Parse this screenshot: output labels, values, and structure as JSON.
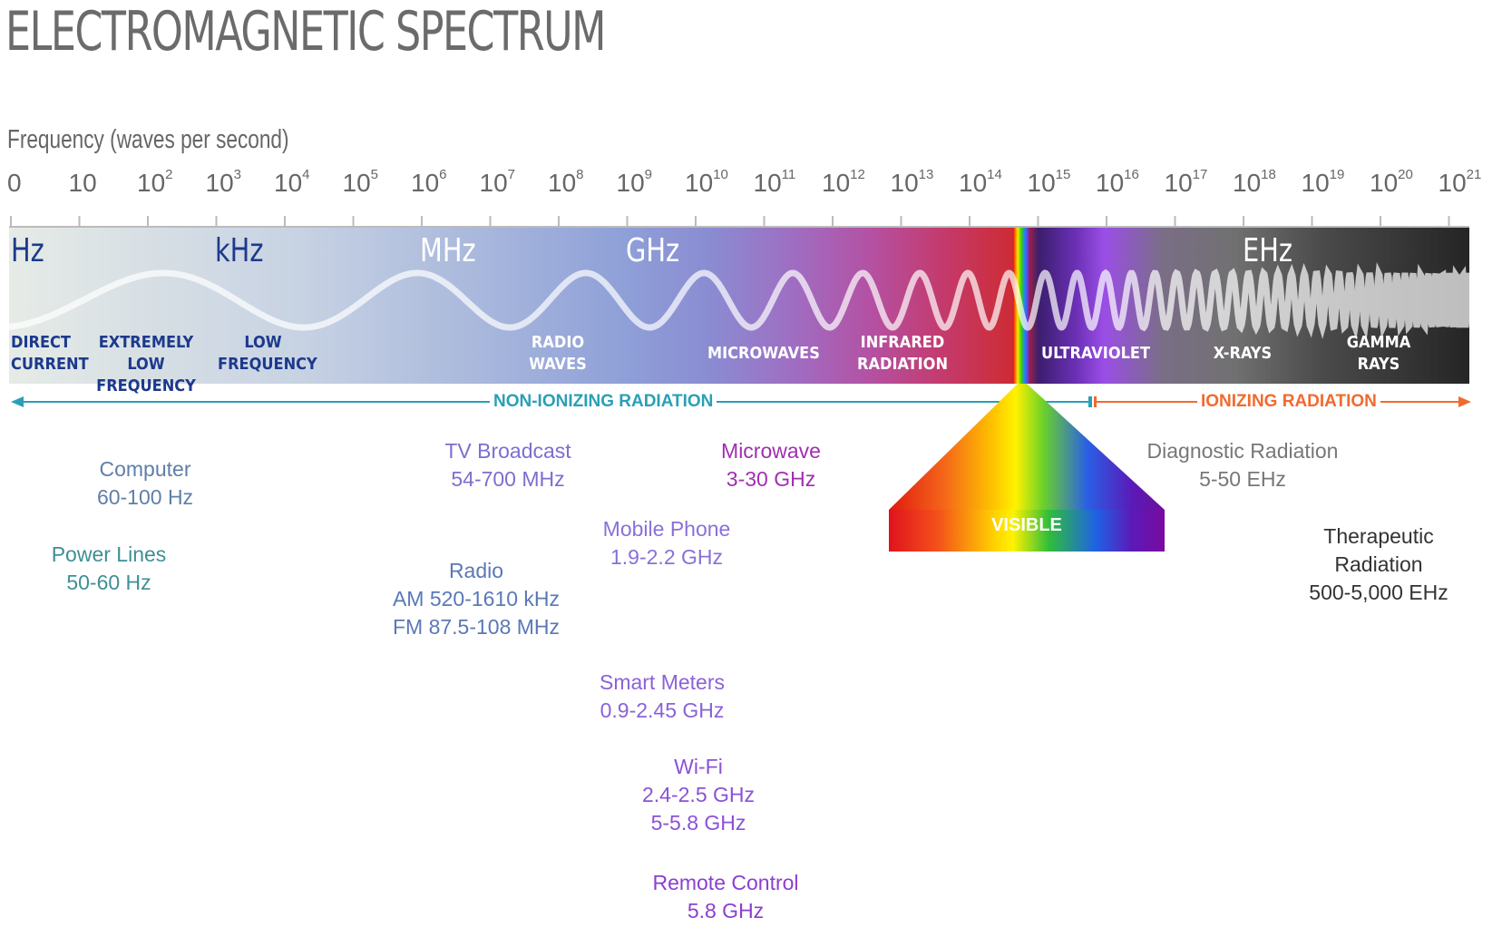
{
  "title": "ELECTROMAGNETIC SPECTRUM",
  "frequency_label": "Frequency (waves per second)",
  "ticks": [
    {
      "base": "0",
      "exp": ""
    },
    {
      "base": "10",
      "exp": ""
    },
    {
      "base": "10",
      "exp": "2"
    },
    {
      "base": "10",
      "exp": "3"
    },
    {
      "base": "10",
      "exp": "4"
    },
    {
      "base": "10",
      "exp": "5"
    },
    {
      "base": "10",
      "exp": "6"
    },
    {
      "base": "10",
      "exp": "7"
    },
    {
      "base": "10",
      "exp": "8"
    },
    {
      "base": "10",
      "exp": "9"
    },
    {
      "base": "10",
      "exp": "10"
    },
    {
      "base": "10",
      "exp": "11"
    },
    {
      "base": "10",
      "exp": "12"
    },
    {
      "base": "10",
      "exp": "13"
    },
    {
      "base": "10",
      "exp": "14"
    },
    {
      "base": "10",
      "exp": "15"
    },
    {
      "base": "10",
      "exp": "16"
    },
    {
      "base": "10",
      "exp": "17"
    },
    {
      "base": "10",
      "exp": "18"
    },
    {
      "base": "10",
      "exp": "19"
    },
    {
      "base": "10",
      "exp": "20"
    },
    {
      "base": "10",
      "exp": "21"
    }
  ],
  "units": {
    "hz": "Hz",
    "khz": "kHz",
    "mhz": "MHz",
    "ghz": "GHz",
    "ehz": "EHz"
  },
  "regions": {
    "direct_current": "DIRECT\nCURRENT",
    "extremely_low": "EXTREMELY LOW\nFREQUENCY",
    "low": "LOW\nFREQUENCY",
    "radio": "RADIO\nWAVES",
    "microwaves": "MICROWAVES",
    "infrared": "INFRARED\nRADIATION",
    "ultraviolet": "ULTRAVIOLET",
    "xrays": "X-RAYS",
    "gamma": "GAMMA\nRAYS"
  },
  "non_ionizing": "NON-IONIZING RADIATION",
  "ionizing": "IONIZING RADIATION",
  "visible": "VISIBLE",
  "devices": {
    "computer": "Computer\n60-100 Hz",
    "power_lines": "Power Lines\n50-60 Hz",
    "tv": "TV Broadcast\n54-700 MHz",
    "radio": "Radio\nAM 520-1610 kHz\nFM 87.5-108 MHz",
    "microwave": "Microwave\n3-30 GHz",
    "mobile": "Mobile Phone\n1.9-2.2 GHz",
    "smart_meters": "Smart Meters\n0.9-2.45 GHz",
    "wifi": "Wi-Fi\n2.4-2.5 GHz\n5-5.8 GHz",
    "remote": "Remote Control\n5.8 GHz",
    "diagnostic": "Diagnostic Radiation\n5-50 EHz",
    "therapeutic": "Therapeutic\nRadiation\n500-5,000 EHz"
  },
  "colors": {
    "non_ionizing": "#2a9fb7",
    "ionizing": "#f26a2e",
    "computer": "#5f7fa8",
    "power_lines": "#3f8f94",
    "tv": "#7b6fd0",
    "radio": "#5a78b8",
    "microwave": "#a02fb0",
    "mobile": "#8a70d8",
    "smart_meters": "#8a62d8",
    "wifi": "#8a52d8",
    "remote": "#8a40d0",
    "diagnostic": "#777777",
    "therapeutic": "#333333"
  }
}
